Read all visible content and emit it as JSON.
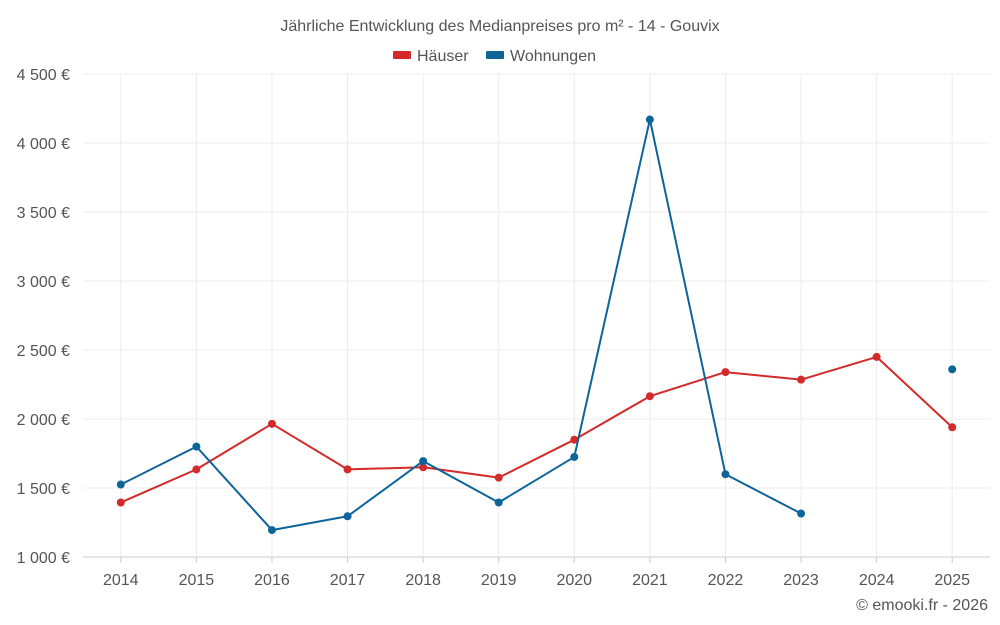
{
  "chart_data": {
    "type": "line",
    "title": "Jährliche Entwicklung des Medianpreises pro m² - 14 - Gouvix",
    "categories": [
      "2014",
      "2015",
      "2016",
      "2017",
      "2018",
      "2019",
      "2020",
      "2021",
      "2022",
      "2023",
      "2024",
      "2025"
    ],
    "series": [
      {
        "name": "Häuser",
        "color": "#d32a2a",
        "values": [
          1395,
          1635,
          1965,
          1635,
          1650,
          1575,
          1850,
          2165,
          2340,
          2285,
          2450,
          1940
        ]
      },
      {
        "name": "Wohnungen",
        "color": "#0d6499",
        "values": [
          1525,
          1800,
          1195,
          1295,
          1695,
          1395,
          1725,
          4170,
          1600,
          1315,
          null,
          2360
        ]
      }
    ],
    "ylim": [
      1000,
      4500
    ],
    "yticks": [
      1000,
      1500,
      2000,
      2500,
      3000,
      3500,
      4000,
      4500
    ],
    "ytick_labels": [
      "1 000 €",
      "1 500 €",
      "2 000 €",
      "2 500 €",
      "3 000 €",
      "3 500 €",
      "4 000 €",
      "4 500 €"
    ],
    "xlabel": "",
    "ylabel": "",
    "grid": true,
    "legend_position": "top-center",
    "credit": "© emooki.fr - 2026"
  }
}
